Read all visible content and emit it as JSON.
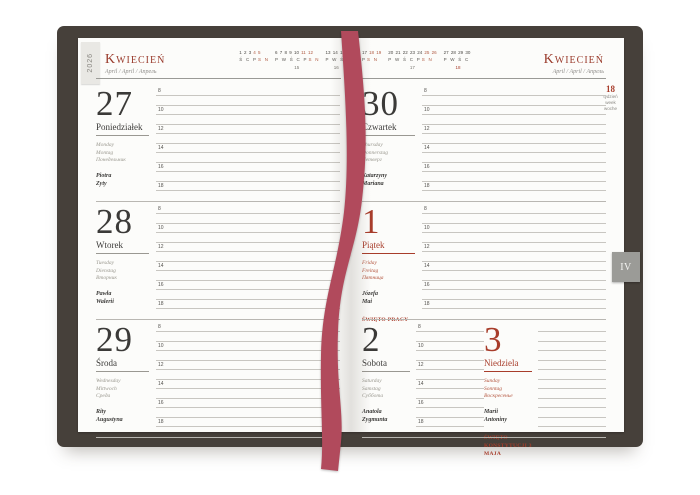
{
  "tabs": {
    "year": "2026",
    "month_index": "IV"
  },
  "month_left": {
    "title": "Kwiecień",
    "sub": "April / April / Апрель"
  },
  "month_right": {
    "title": "Kwiecień",
    "sub": "April / April / Апрель"
  },
  "week_badge": {
    "number": "18",
    "labels": [
      "tydzień",
      "week",
      "woche"
    ]
  },
  "hours": [
    "8",
    "10",
    "12",
    "14",
    "16",
    "18"
  ],
  "minical_left": {
    "groups": [
      {
        "nb": "1 2 3",
        "nr": "4 5",
        "lb": "Ś C P",
        "lr": "S N",
        "wk": ""
      },
      {
        "nb": "6 7 8 9 10",
        "nr": "11 12",
        "lb": "P W Ś C P",
        "lr": "S N",
        "wk": "15"
      },
      {
        "nb": "13 14 15",
        "nr": "",
        "lb": "P W Ś",
        "lr": "",
        "wk": "16"
      }
    ]
  },
  "minical_right": {
    "groups": [
      {
        "nb": "17",
        "nr": "18 19",
        "lb": "P",
        "lr": "S N",
        "wk": ""
      },
      {
        "nb": "20 21 22 23 24",
        "nr": "25 26",
        "lb": "P W Ś C P",
        "lr": "S N",
        "wk": "17"
      },
      {
        "nb": "27 28 29 30",
        "nr": "",
        "lb": "P W Ś C",
        "lr": "",
        "wk": "18"
      }
    ]
  },
  "days": [
    {
      "number": "27",
      "name": "Poniedziałek",
      "t1": "Monday",
      "t2": "Montag",
      "t3": "Понедельник",
      "n1": "Piotra",
      "n2": "Zyty",
      "holiday": ""
    },
    {
      "number": "28",
      "name": "Wtorek",
      "t1": "Tuesday",
      "t2": "Dienstag",
      "t3": "Вторник",
      "n1": "Pawła",
      "n2": "Walerii",
      "holiday": ""
    },
    {
      "number": "29",
      "name": "Środa",
      "t1": "Wednesday",
      "t2": "Mittwoch",
      "t3": "Среда",
      "n1": "Rity",
      "n2": "Augustyna",
      "holiday": ""
    },
    {
      "number": "30",
      "name": "Czwartek",
      "t1": "Thursday",
      "t2": "Donnerstag",
      "t3": "Четверг",
      "n1": "Katarzyny",
      "n2": "Mariana",
      "holiday": ""
    },
    {
      "number": "1",
      "name": "Piątek",
      "t1": "Friday",
      "t2": "Freitag",
      "t3": "Пятница",
      "n1": "Józefa",
      "n2": "Mai",
      "holiday": "Święto Pracy"
    },
    {
      "number": "2",
      "name": "Sobota",
      "t1": "Saturday",
      "t2": "Samstag",
      "t3": "Суббота",
      "n1": "Anatola",
      "n2": "Zygmunta",
      "holiday": ""
    },
    {
      "number": "3",
      "name": "Niedziela",
      "t1": "Sunday",
      "t2": "Sonntag",
      "t3": "Воскресенье",
      "n1": "Marii",
      "n2": "Antoniny",
      "holiday": "Święto Konstytucji 3 Maja"
    }
  ],
  "colors": {
    "accent": "#a83d2b",
    "ribbon": "#b14a5c",
    "cover": "#46403a"
  }
}
